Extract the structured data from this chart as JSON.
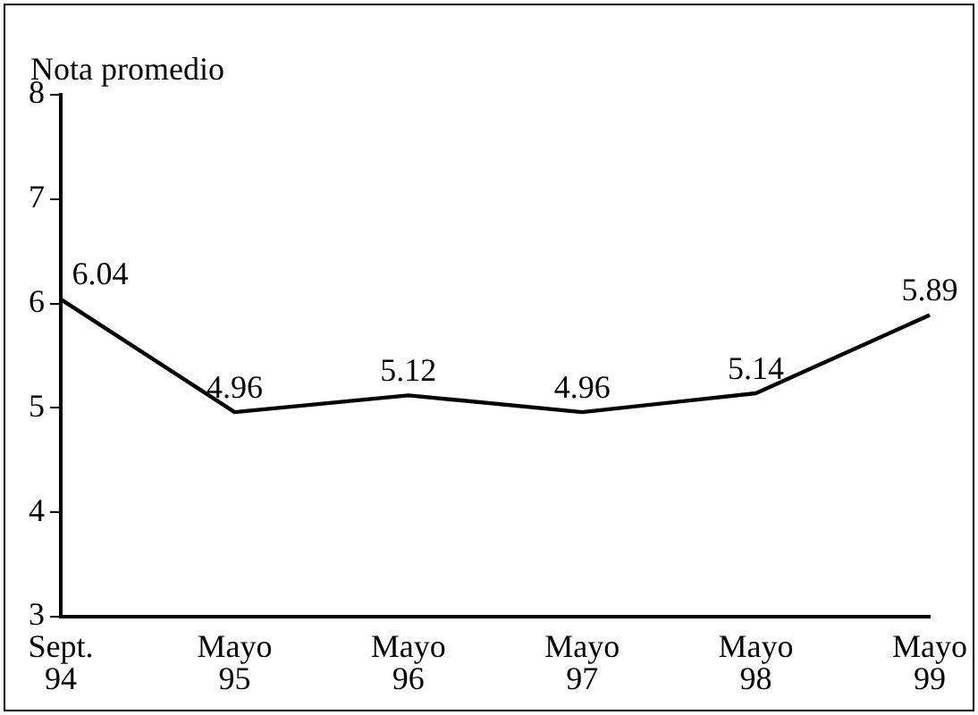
{
  "chart_data": {
    "type": "line",
    "ylabel": "Nota promedio",
    "categories": [
      "Sept. 94",
      "Mayo 95",
      "Mayo 96",
      "Mayo 97",
      "Mayo 98",
      "Mayo 99"
    ],
    "series": [
      {
        "color": "#000000",
        "values": [
          6.04,
          4.96,
          5.12,
          4.96,
          5.14,
          5.89
        ]
      }
    ],
    "ylim": [
      3,
      8
    ],
    "yticks": [
      3,
      4,
      5,
      6,
      7,
      8
    ],
    "grid": false,
    "legend": false,
    "marker": "none",
    "line_style": "solid",
    "data_labels": true
  }
}
